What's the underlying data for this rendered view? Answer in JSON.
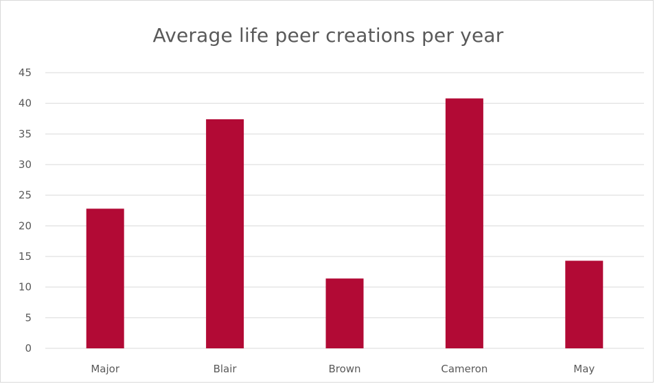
{
  "chart_data": {
    "type": "bar",
    "title": "Average life peer creations per year",
    "categories": [
      "Major",
      "Blair",
      "Brown",
      "Cameron",
      "May"
    ],
    "values": [
      22.8,
      37.4,
      11.4,
      40.8,
      14.3
    ],
    "xlabel": "",
    "ylabel": "",
    "ylim": [
      0,
      45
    ],
    "yticks": [
      "0",
      "5",
      "10",
      "15",
      "20",
      "25",
      "30",
      "35",
      "40",
      "45"
    ],
    "grid": true,
    "legend": "none",
    "colors": {
      "bar": "#B20A35",
      "grid": "#D9D9D9",
      "text": "#595959"
    }
  }
}
